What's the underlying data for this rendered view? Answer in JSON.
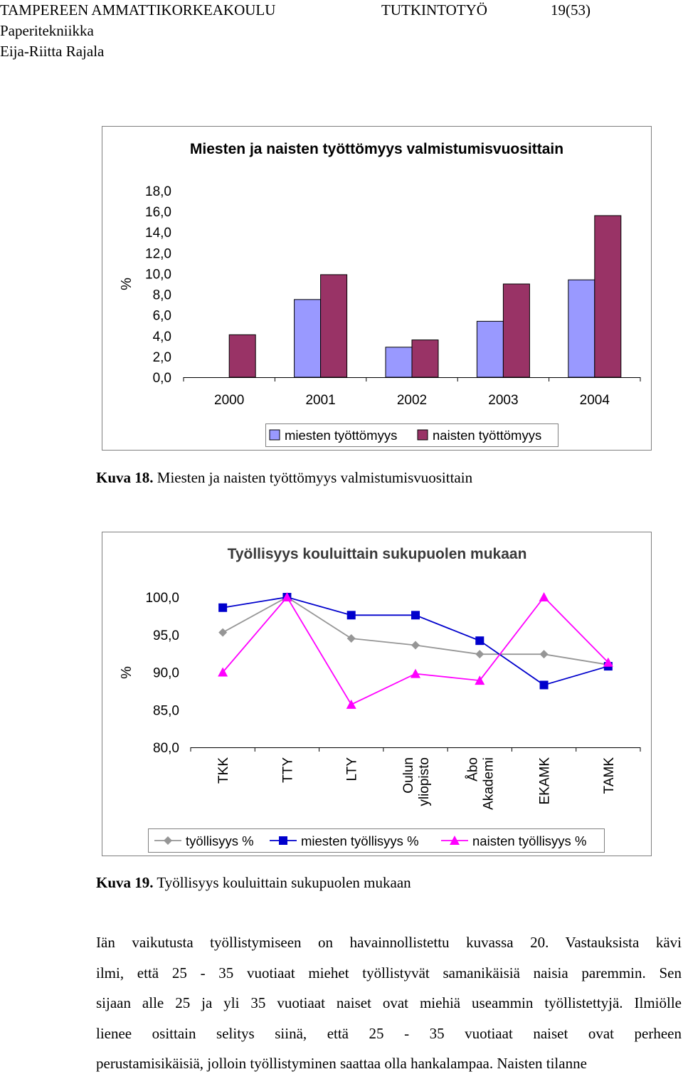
{
  "header": {
    "institution": "TAMPEREEN AMMATTIKORKEAKOULU",
    "doc_type": "TUTKINTOTYÖ",
    "page": "19(53)",
    "department": "Paperitekniikka",
    "author": "Eija-Riitta Rajala"
  },
  "figure18": {
    "caption_label": "Kuva 18.",
    "caption_text": "Miesten ja naisten työttömyys valmistumisvuosittain"
  },
  "figure19": {
    "caption_label": "Kuva 19.",
    "caption_text": "Työllisyys kouluittain sukupuolen mukaan"
  },
  "body_text": {
    "lines": [
      "Iän vaikutusta työllistymiseen on havainnollistettu kuvassa 20. Vastauksista kävi",
      "ilmi, että 25 - 35 vuotiaat miehet työllistyvät samanikäisiä naisia paremmin. Sen",
      "sijaan alle 25 ja yli 35 vuotiaat naiset ovat miehiä useammin työllistettyjä. Ilmiölle",
      "lienee osittain selitys siinä, että 25 - 35 vuotiaat naiset ovat perheen",
      "perustamisikäisiä, jolloin työllistyminen saattaa olla hankalampaa. Naisten tilanne"
    ]
  },
  "chart_data": [
    {
      "type": "bar",
      "title": "Miesten ja naisten työttömyys valmistumisvuosittain",
      "ylabel": "%",
      "xlabel": "",
      "ylim": [
        0,
        18
      ],
      "yticks": [
        "18,0",
        "16,0",
        "14,0",
        "12,0",
        "10,0",
        "8,0",
        "6,0",
        "4,0",
        "2,0",
        "0,0"
      ],
      "categories": [
        "2000",
        "2001",
        "2002",
        "2003",
        "2004"
      ],
      "series": [
        {
          "name": "miesten työttömyys",
          "color": "#9999ff",
          "values": [
            0,
            7.5,
            2.9,
            5.4,
            9.4
          ]
        },
        {
          "name": "naisten työttömyys",
          "color": "#993366",
          "values": [
            4.1,
            9.9,
            3.6,
            9.0,
            15.6
          ]
        }
      ],
      "legend": "bottom",
      "grid": false
    },
    {
      "type": "line",
      "title": "Työllisyys kouluittain sukupuolen mukaan",
      "ylabel": "%",
      "xlabel": "",
      "ylim": [
        80,
        100
      ],
      "yticks": [
        "100,0",
        "95,0",
        "90,0",
        "85,0",
        "80,0"
      ],
      "categories": [
        "TKK",
        "TTY",
        "LTY",
        "Oulun yliopisto",
        "Åbo Akademi",
        "EKAMK",
        "TAMK"
      ],
      "category_lines": [
        [
          "TKK"
        ],
        [
          "TTY"
        ],
        [
          "LTY"
        ],
        [
          "Oulun",
          "yliopisto"
        ],
        [
          "Åbo",
          "Akademi"
        ],
        [
          "EKAMK"
        ],
        [
          "TAMK"
        ]
      ],
      "series": [
        {
          "name": "työllisyys %",
          "color": "#969696",
          "marker": "diamond",
          "values": [
            95.3,
            100,
            94.5,
            93.6,
            92.4,
            92.4,
            91.0
          ]
        },
        {
          "name": "miesten työllisyys %",
          "color": "#0000cc",
          "marker": "square",
          "values": [
            98.6,
            100,
            97.6,
            97.6,
            94.2,
            88.3,
            90.8
          ]
        },
        {
          "name": "naisten työllisyys %",
          "color": "#ff00ff",
          "marker": "triangle",
          "values": [
            90.0,
            100,
            85.7,
            89.8,
            88.9,
            100,
            91.3
          ]
        }
      ],
      "legend": "bottom",
      "grid": false
    }
  ]
}
